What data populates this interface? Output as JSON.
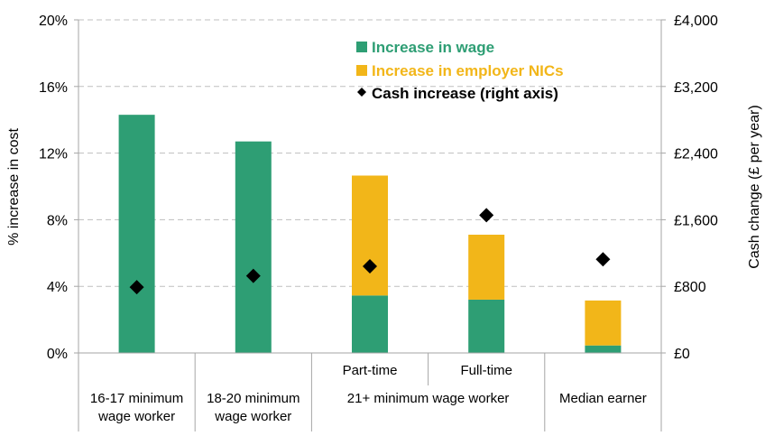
{
  "chart_data": {
    "type": "bar",
    "stacked": true,
    "categories": [
      "16-17 minimum wage worker",
      "18-20 minimum wage worker",
      "21+ minimum wage worker — Part-time",
      "21+ minimum wage worker — Full-time",
      "Median earner"
    ],
    "category_labels": [
      {
        "lines": [
          "16-17 minimum",
          "wage worker"
        ]
      },
      {
        "lines": [
          "18-20 minimum",
          "wage worker"
        ]
      },
      {
        "lines": [
          "Part-time"
        ]
      },
      {
        "lines": [
          "Full-time"
        ]
      },
      {
        "lines": [
          "Median earner"
        ]
      }
    ],
    "group_labels": [
      {
        "text": "21+ minimum wage worker",
        "categories": [
          2,
          3
        ]
      }
    ],
    "series": [
      {
        "name": "Increase in wage",
        "axis": "left",
        "kind": "bar",
        "color": "#2e9e74",
        "values": [
          14.3,
          12.7,
          3.45,
          3.2,
          0.45
        ]
      },
      {
        "name": "Increase in employer  NICs",
        "axis": "left",
        "kind": "bar",
        "color": "#f2b619",
        "values": [
          0,
          0,
          7.2,
          3.9,
          2.7
        ]
      },
      {
        "name": "Cash increase (right axis)",
        "axis": "right",
        "kind": "marker",
        "color": "#000000",
        "values": [
          790,
          925,
          1040,
          1655,
          1125
        ]
      }
    ],
    "y_left": {
      "label": "% increase in cost",
      "min": 0,
      "max": 20,
      "ticks": [
        0,
        4,
        8,
        12,
        16,
        20
      ],
      "tick_labels": [
        "0%",
        "4%",
        "8%",
        "12%",
        "16%",
        "20%"
      ]
    },
    "y_right": {
      "label": "Cash change (£ per year)",
      "min": 0,
      "max": 4000,
      "ticks": [
        0,
        800,
        1600,
        2400,
        3200,
        4000
      ],
      "tick_labels": [
        "£0",
        "£800",
        "£1,600",
        "£2,400",
        "£3,200",
        "£4,000"
      ]
    },
    "grid": true,
    "legend_position": "top-right"
  }
}
